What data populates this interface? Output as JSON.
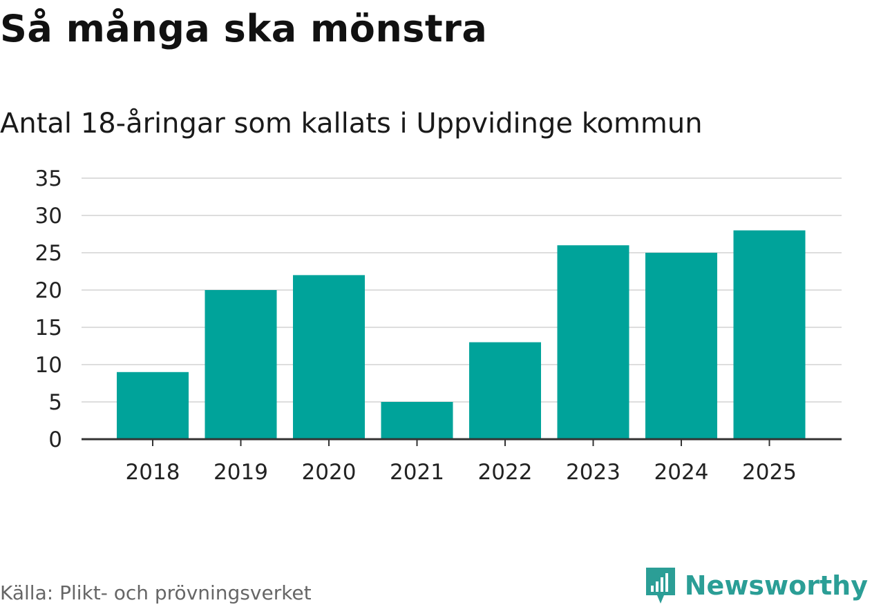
{
  "chart_data": {
    "type": "bar",
    "title": "Så många ska mönstra",
    "subtitle": "Antal 18-åringar som kallats i Uppvidinge kommun",
    "categories": [
      "2018",
      "2019",
      "2020",
      "2021",
      "2022",
      "2023",
      "2024",
      "2025"
    ],
    "values": [
      9,
      20,
      22,
      5,
      13,
      26,
      25,
      28
    ],
    "xlabel": "",
    "ylabel": "",
    "ylim": [
      0,
      35
    ],
    "yticks": [
      0,
      5,
      10,
      15,
      20,
      25,
      30,
      35
    ],
    "grid": true,
    "bar_color": "#00a39a",
    "grid_color": "#dddddd",
    "axis_color": "#333333"
  },
  "footer": {
    "source": "Källa: Plikt- och prövningsverket",
    "brand": "Newsworthy",
    "brand_color": "#2b9e96",
    "brand_icon": "newsworthy-logo-icon"
  }
}
